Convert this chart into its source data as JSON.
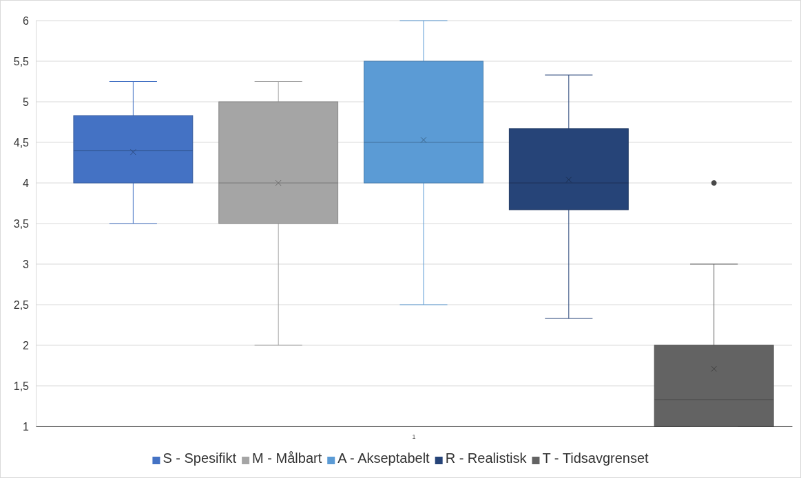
{
  "chart_data": {
    "type": "box",
    "categories": [
      "1"
    ],
    "ylim": [
      1,
      6
    ],
    "yticks": [
      1,
      {
        "value": 1.5,
        "label": "1,5"
      },
      2,
      {
        "value": 2.5,
        "label": "2,5"
      },
      3,
      {
        "value": 3.5,
        "label": "3,5"
      },
      4,
      {
        "value": 4.5,
        "label": "4,5"
      },
      5,
      {
        "value": 5.5,
        "label": "5,5"
      },
      6
    ],
    "grid": "y",
    "legend": "bottom",
    "series": [
      {
        "name": "S - Spesifikt",
        "color": "#4472c4",
        "boxes": [
          {
            "low": 3.5,
            "q1": 4,
            "median": 4.4,
            "q3": 4.83,
            "high": 5.25,
            "mean": 4.38
          }
        ]
      },
      {
        "name": "M - Målbart",
        "color": "#a5a5a5",
        "boxes": [
          {
            "low": 2,
            "q1": 3.5,
            "median": 4,
            "q3": 5,
            "high": 5.25,
            "mean": 4
          }
        ]
      },
      {
        "name": "A - Akseptabelt",
        "color": "#5b9bd5",
        "boxes": [
          {
            "low": 2.5,
            "q1": 4,
            "median": 4.5,
            "q3": 5.5,
            "high": 6,
            "mean": 4.53
          }
        ]
      },
      {
        "name": "R - Realistisk",
        "color": "#264478",
        "boxes": [
          {
            "low": 2.33,
            "q1": 3.67,
            "median": 4,
            "q3": 4.67,
            "high": 5.33,
            "mean": 4.04
          }
        ]
      },
      {
        "name": "T - Tidsavgrenset",
        "color": "#636363",
        "boxes": [
          {
            "low": 1,
            "q1": 1,
            "median": 1.33,
            "q3": 2,
            "high": 3,
            "mean": 1.71,
            "outliers": [
              4
            ]
          }
        ]
      }
    ]
  }
}
